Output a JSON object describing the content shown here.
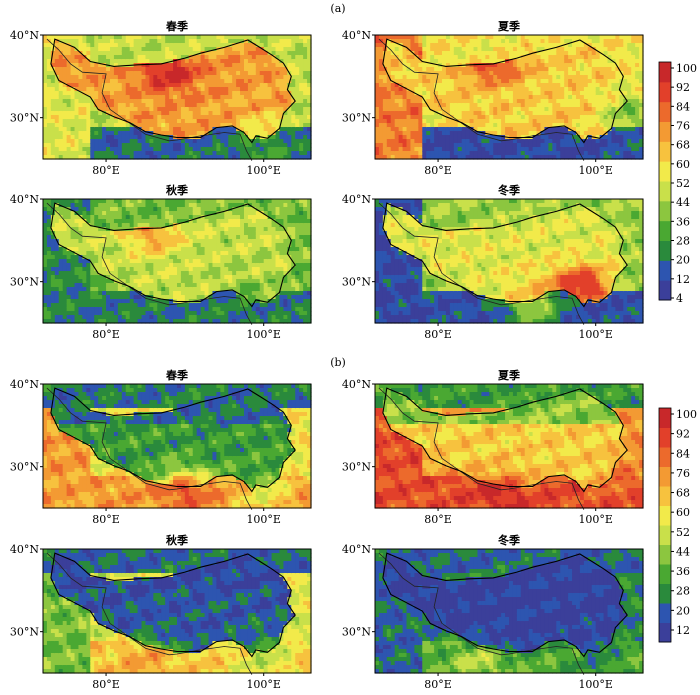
{
  "figure": {
    "panels": [
      {
        "label": "(a)",
        "colorbar_ticks": [
          "100",
          "92",
          "84",
          "76",
          "68",
          "60",
          "52",
          "44",
          "36",
          "28",
          "20",
          "12",
          "4"
        ],
        "maps": [
          {
            "title": "春季",
            "x_ticks": [
              "80°E",
              "100°E"
            ],
            "y_ticks": [
              "40°N",
              "30°N"
            ],
            "field": "a_spring"
          },
          {
            "title": "夏季",
            "x_ticks": [
              "80°E",
              "100°E"
            ],
            "y_ticks": [
              "40°N",
              "30°N"
            ],
            "field": "a_summer"
          },
          {
            "title": "秋季",
            "x_ticks": [
              "80°E",
              "100°E"
            ],
            "y_ticks": [
              "40°N",
              "30°N"
            ],
            "field": "a_autumn"
          },
          {
            "title": "冬季",
            "x_ticks": [
              "80°E",
              "100°E"
            ],
            "y_ticks": [
              "40°N",
              "30°N"
            ],
            "field": "a_winter"
          }
        ]
      },
      {
        "label": "(b)",
        "colorbar_ticks": [
          "100",
          "92",
          "84",
          "76",
          "68",
          "60",
          "52",
          "44",
          "36",
          "28",
          "20",
          "12"
        ],
        "maps": [
          {
            "title": "春季",
            "x_ticks": [
              "80°E",
              "100°E"
            ],
            "y_ticks": [
              "40°N",
              "30°N"
            ],
            "field": "b_spring"
          },
          {
            "title": "夏季",
            "x_ticks": [
              "80°E",
              "100°E"
            ],
            "y_ticks": [
              "40°N",
              "30°N"
            ],
            "field": "b_summer"
          },
          {
            "title": "秋季",
            "x_ticks": [
              "80°E",
              "100°E"
            ],
            "y_ticks": [
              "40°N",
              "30°N"
            ],
            "field": "b_autumn"
          },
          {
            "title": "冬季",
            "x_ticks": [
              "80°E",
              "100°E"
            ],
            "y_ticks": [
              "40°N",
              "30°N"
            ],
            "field": "b_winter"
          }
        ]
      }
    ],
    "colormap": [
      "#3b3f9a",
      "#2d55b0",
      "#2a8a3c",
      "#4aa832",
      "#8cc63f",
      "#c9e04a",
      "#f2ea4a",
      "#f7c23e",
      "#f39a33",
      "#ec6a2c",
      "#e2402a",
      "#c8282a"
    ]
  },
  "chart_data": [
    {
      "type": "heatmap",
      "panel": "(a)",
      "colorbar_range": [
        4,
        100
      ],
      "xlim": [
        "72°E",
        "106°E"
      ],
      "ylim": [
        "25°N",
        "40°N"
      ],
      "seasons": [
        "春季",
        "夏季",
        "秋季",
        "冬季"
      ],
      "description_values": {
        "春季": {
          "plateau_interior": 80,
          "south_slope": 20,
          "southeast": 50
        },
        "夏季": {
          "plateau_interior": 70,
          "south_slope": 12,
          "southeast": 40
        },
        "秋季": {
          "plateau_interior": 45,
          "south_slope": 20,
          "southeast": 25
        },
        "冬季": {
          "plateau_interior": 55,
          "south_slope": 15,
          "southeast": 85
        }
      }
    },
    {
      "type": "heatmap",
      "panel": "(b)",
      "colorbar_range": [
        8,
        104
      ],
      "xlim": [
        "72°E",
        "106°E"
      ],
      "ylim": [
        "25°N",
        "40°N"
      ],
      "seasons": [
        "春季",
        "夏季",
        "秋季",
        "冬季"
      ],
      "description_values": {
        "春季": {
          "plateau_interior": 30,
          "south_slope": 60,
          "southeast": 45
        },
        "夏季": {
          "plateau_interior": 60,
          "south_slope": 80,
          "southeast": 65
        },
        "秋季": {
          "plateau_interior": 20,
          "south_slope": 50,
          "southeast": 35
        },
        "冬季": {
          "plateau_interior": 12,
          "south_slope": 25,
          "southeast": 15
        }
      }
    }
  ]
}
